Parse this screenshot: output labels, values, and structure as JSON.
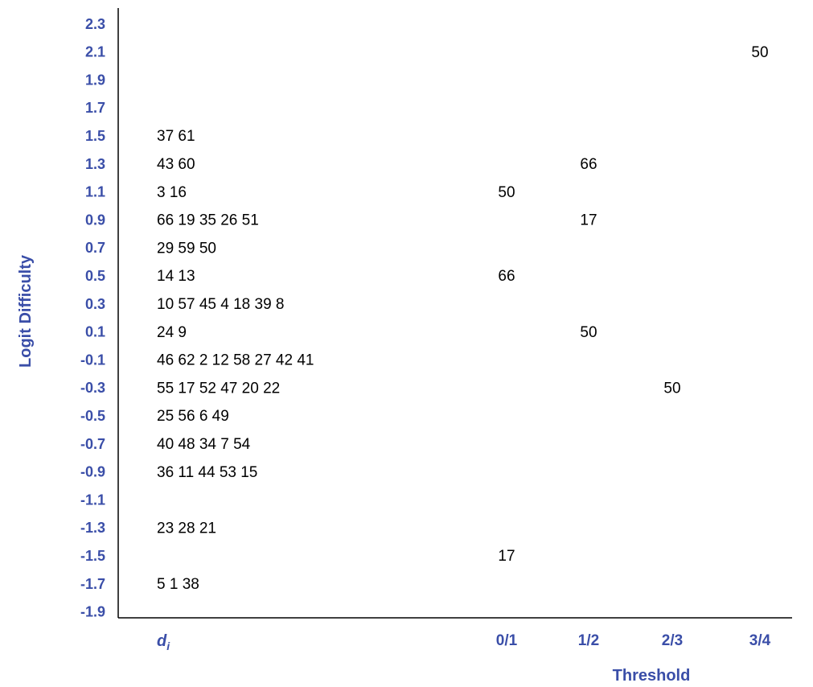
{
  "chart_data": {
    "type": "table",
    "ylabel": "Logit Difficulty",
    "xlabel": "Threshold",
    "first_column_label": "d",
    "first_column_subscript": "i",
    "columns": [
      "0/1",
      "1/2",
      "2/3",
      "3/4"
    ],
    "y_ticks": [
      "2.3",
      "2.1",
      "1.9",
      "1.7",
      "1.5",
      "1.3",
      "1.1",
      "0.9",
      "0.7",
      "0.5",
      "0.3",
      "0.1",
      "-0.1",
      "-0.3",
      "-0.5",
      "-0.7",
      "-0.9",
      "-1.1",
      "-1.3",
      "-1.5",
      "-1.7",
      "-1.9"
    ],
    "rows": [
      {
        "y": "2.3",
        "items": "",
        "thresholds": [
          "",
          "",
          "",
          ""
        ]
      },
      {
        "y": "2.1",
        "items": "",
        "thresholds": [
          "",
          "",
          "",
          "50"
        ]
      },
      {
        "y": "1.9",
        "items": "",
        "thresholds": [
          "",
          "",
          "",
          ""
        ]
      },
      {
        "y": "1.7",
        "items": "",
        "thresholds": [
          "",
          "",
          "",
          ""
        ]
      },
      {
        "y": "1.5",
        "items": "37 61",
        "thresholds": [
          "",
          "",
          "",
          ""
        ]
      },
      {
        "y": "1.3",
        "items": "43 60",
        "thresholds": [
          "",
          "66",
          "",
          ""
        ]
      },
      {
        "y": "1.1",
        "items": "3 16",
        "thresholds": [
          "50",
          "",
          "",
          ""
        ]
      },
      {
        "y": "0.9",
        "items": "66 19 35 26 51",
        "thresholds": [
          "",
          "17",
          "",
          ""
        ]
      },
      {
        "y": "0.7",
        "items": "29 59 50",
        "thresholds": [
          "",
          "",
          "",
          ""
        ]
      },
      {
        "y": "0.5",
        "items": "14 13",
        "thresholds": [
          "66",
          "",
          "",
          ""
        ]
      },
      {
        "y": "0.3",
        "items": "10 57 45 4 18 39 8",
        "thresholds": [
          "",
          "",
          "",
          ""
        ]
      },
      {
        "y": "0.1",
        "items": "24 9",
        "thresholds": [
          "",
          "50",
          "",
          ""
        ]
      },
      {
        "y": "-0.1",
        "items": "46 62 2 12 58 27 42 41",
        "thresholds": [
          "",
          "",
          "",
          ""
        ]
      },
      {
        "y": "-0.3",
        "items": "55 17 52 47 20 22",
        "thresholds": [
          "",
          "",
          "50",
          ""
        ]
      },
      {
        "y": "-0.5",
        "items": "25 56 6 49",
        "thresholds": [
          "",
          "",
          "",
          ""
        ]
      },
      {
        "y": "-0.7",
        "items": "40 48 34 7 54",
        "thresholds": [
          "",
          "",
          "",
          ""
        ]
      },
      {
        "y": "-0.9",
        "items": "36 11 44 53 15",
        "thresholds": [
          "",
          "",
          "",
          ""
        ]
      },
      {
        "y": "-1.1",
        "items": "",
        "thresholds": [
          "",
          "",
          "",
          ""
        ]
      },
      {
        "y": "-1.3",
        "items": "23 28 21",
        "thresholds": [
          "",
          "",
          "",
          ""
        ]
      },
      {
        "y": "-1.5",
        "items": "",
        "thresholds": [
          "17",
          "",
          "",
          ""
        ]
      },
      {
        "y": "-1.7",
        "items": "5 1 38",
        "thresholds": [
          "",
          "",
          "",
          ""
        ]
      },
      {
        "y": "-1.9",
        "items": "",
        "thresholds": [
          "",
          "",
          "",
          ""
        ]
      }
    ],
    "colors": {
      "axis_text": "#3a4ea8",
      "cell_text": "#000000",
      "axis_line": "#000000"
    }
  }
}
